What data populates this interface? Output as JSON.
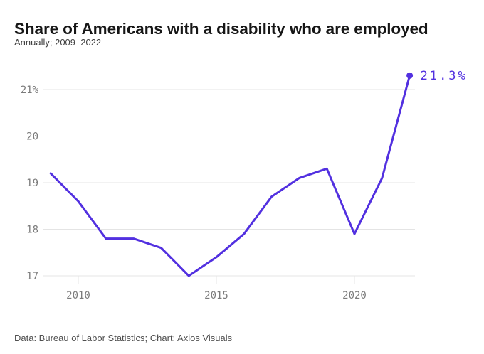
{
  "header": {
    "title": "Share of Americans with a disability who are employed",
    "subtitle": "Annually; 2009–2022"
  },
  "chart_data": {
    "type": "line",
    "title": "Share of Americans with a disability who are employed",
    "subtitle": "Annually; 2009–2022",
    "x": [
      2009,
      2010,
      2011,
      2012,
      2013,
      2014,
      2015,
      2016,
      2017,
      2018,
      2019,
      2020,
      2021,
      2022
    ],
    "values": [
      19.2,
      18.6,
      17.8,
      17.8,
      17.6,
      17.0,
      17.4,
      17.9,
      18.7,
      19.1,
      19.3,
      17.9,
      19.1,
      21.3
    ],
    "end_label": "21.3%",
    "y_ticks": [
      {
        "value": 17,
        "label": "17"
      },
      {
        "value": 18,
        "label": "18"
      },
      {
        "value": 19,
        "label": "19"
      },
      {
        "value": 20,
        "label": "20"
      },
      {
        "value": 21,
        "label": "21%"
      }
    ],
    "x_ticks": [
      {
        "value": 2010,
        "label": "2010"
      },
      {
        "value": 2015,
        "label": "2015"
      },
      {
        "value": 2020,
        "label": "2020"
      }
    ],
    "xlim": [
      2009,
      2022
    ],
    "ylim": [
      16.9,
      21.6
    ],
    "ylabel": "",
    "xlabel": "",
    "grid": "horizontal",
    "legend": "none"
  },
  "footer": {
    "source": "Data: Bureau of Labor Statistics; Chart: Axios Visuals"
  },
  "colors": {
    "line": "#5230e0",
    "end_label": "#5230e0",
    "grid": "#e4e4e4",
    "axis_text": "#7b7b7b",
    "title": "#161616",
    "subtitle": "#404040",
    "source": "#4f4f4f",
    "background": "#ffffff"
  }
}
